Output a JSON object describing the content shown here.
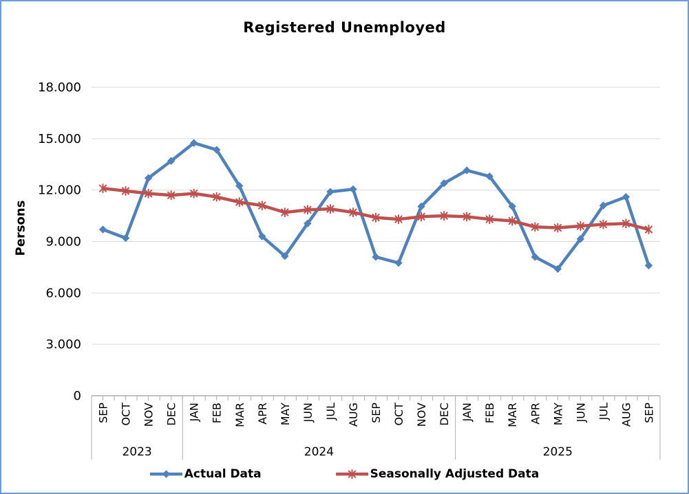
{
  "chart_data": {
    "type": "line",
    "title": "Registered Unemployed",
    "xlabel": "",
    "ylabel": "Persons",
    "ylim": [
      0,
      18000
    ],
    "y_tick_interval": 3000,
    "y_tick_labels": [
      "0",
      "3.000",
      "6.000",
      "9.000",
      "12.000",
      "15.000",
      "18.000"
    ],
    "grid": true,
    "legend_position": "bottom",
    "categories": [
      "SEP",
      "OCT",
      "NOV",
      "DEC",
      "JAN",
      "FEB",
      "MAR",
      "APR",
      "MAY",
      "JUN",
      "JUL",
      "AUG",
      "SEP",
      "OCT",
      "NOV",
      "DEC",
      "JAN",
      "FEB",
      "MAR",
      "APR",
      "MAY",
      "JUN",
      "JUL",
      "AUG",
      "SEP"
    ],
    "year_groups": [
      {
        "label": "2023",
        "count": 4
      },
      {
        "label": "2024",
        "count": 12
      },
      {
        "label": "2025",
        "count": 9
      }
    ],
    "series": [
      {
        "name": "Actual Data",
        "color": "#4F81BD",
        "marker": "diamond",
        "values": [
          9700,
          9200,
          12700,
          13700,
          14750,
          14350,
          12250,
          9300,
          8150,
          10050,
          11900,
          12050,
          8100,
          7750,
          11050,
          12400,
          13150,
          12800,
          11050,
          8100,
          7400,
          9150,
          11100,
          11600,
          7600
        ]
      },
      {
        "name": "Seasonally Adjusted Data",
        "color": "#C0504D",
        "marker": "asterisk",
        "values": [
          12100,
          11950,
          11800,
          11700,
          11800,
          11600,
          11300,
          11100,
          10700,
          10850,
          10900,
          10700,
          10400,
          10300,
          10450,
          10500,
          10450,
          10300,
          10200,
          9850,
          9800,
          9900,
          10000,
          10050,
          9700
        ]
      }
    ],
    "style": {
      "frame_border_color": "#6D9DD6",
      "grid_color": "#D9D9D9",
      "axis_color": "#AFAFAF",
      "text_color": "#000000"
    }
  }
}
